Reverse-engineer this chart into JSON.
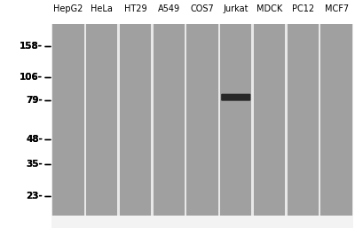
{
  "cell_lines": [
    "HepG2",
    "HeLa",
    "HT29",
    "A549",
    "COS7",
    "Jurkat",
    "MDCK",
    "PC12",
    "MCF7"
  ],
  "mw_markers": [
    158,
    106,
    79,
    48,
    35,
    23
  ],
  "band_lane": 5,
  "band_mw": 82,
  "lane_color": "#a0a0a0",
  "band_color": "#1a1a1a",
  "fig_bg": "#ffffff",
  "blot_bg": "#f5f5f5",
  "n_lanes": 9,
  "label_fontsize": 7.0,
  "marker_fontsize": 7.5,
  "mw_log_min": 18,
  "mw_log_max": 210
}
